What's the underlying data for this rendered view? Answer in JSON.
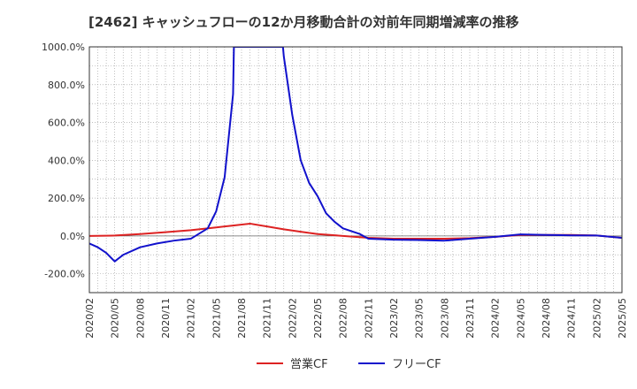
{
  "chart_data": {
    "type": "line",
    "title": "[2462]  キャッシュフローの12か月移動合計の対前年同期増減率の推移",
    "xlabel": "",
    "ylabel": "",
    "ylim": [
      -300,
      1000
    ],
    "yticks": [
      1000,
      800,
      600,
      400,
      200,
      0,
      -200
    ],
    "ytick_labels": [
      "1000.0%",
      "800.0%",
      "600.0%",
      "400.0%",
      "200.0%",
      "0.0%",
      "-200.0%"
    ],
    "x_start": "2020/02",
    "x_end": "2025/05",
    "xtick_labels": [
      "2020/02",
      "2020/05",
      "2020/08",
      "2020/11",
      "2021/02",
      "2021/05",
      "2021/08",
      "2021/11",
      "2022/02",
      "2022/05",
      "2022/08",
      "2022/11",
      "2023/02",
      "2023/05",
      "2023/08",
      "2023/11",
      "2024/02",
      "2024/05",
      "2024/08",
      "2024/11",
      "2025/02",
      "2025/05"
    ],
    "grid": true,
    "legend_position": "bottom",
    "series": [
      {
        "name": "営業CF",
        "color": "#dd2222",
        "points": [
          {
            "m": 0,
            "v": 0
          },
          {
            "m": 3,
            "v": 2
          },
          {
            "m": 6,
            "v": 10
          },
          {
            "m": 9,
            "v": 20
          },
          {
            "m": 12,
            "v": 30
          },
          {
            "m": 15,
            "v": 45
          },
          {
            "m": 17,
            "v": 55
          },
          {
            "m": 19,
            "v": 65
          },
          {
            "m": 21,
            "v": 50
          },
          {
            "m": 23,
            "v": 35
          },
          {
            "m": 25,
            "v": 22
          },
          {
            "m": 27,
            "v": 10
          },
          {
            "m": 30,
            "v": 0
          },
          {
            "m": 33,
            "v": -10
          },
          {
            "m": 36,
            "v": -15
          },
          {
            "m": 39,
            "v": -15
          },
          {
            "m": 42,
            "v": -15
          },
          {
            "m": 45,
            "v": -12
          },
          {
            "m": 48,
            "v": -5
          },
          {
            "m": 51,
            "v": 5
          },
          {
            "m": 54,
            "v": 5
          },
          {
            "m": 57,
            "v": 5
          },
          {
            "m": 60,
            "v": 2
          },
          {
            "m": 63,
            "v": -10
          },
          {
            "m": 66,
            "v": -20
          }
        ]
      },
      {
        "name": "フリーCF",
        "color": "#1111cc",
        "points": [
          {
            "m": 0,
            "v": -40
          },
          {
            "m": 1,
            "v": -60
          },
          {
            "m": 2,
            "v": -90
          },
          {
            "m": 3,
            "v": -135
          },
          {
            "m": 4,
            "v": -100
          },
          {
            "m": 6,
            "v": -60
          },
          {
            "m": 8,
            "v": -40
          },
          {
            "m": 10,
            "v": -25
          },
          {
            "m": 12,
            "v": -15
          },
          {
            "m": 14,
            "v": 40
          },
          {
            "m": 15,
            "v": 130
          },
          {
            "m": 16,
            "v": 310
          },
          {
            "m": 17,
            "v": 750
          },
          {
            "m": 17.1,
            "v": 1000
          },
          {
            "m": 22.9,
            "v": 1000
          },
          {
            "m": 23,
            "v": 950
          },
          {
            "m": 24,
            "v": 640
          },
          {
            "m": 25,
            "v": 400
          },
          {
            "m": 26,
            "v": 280
          },
          {
            "m": 27,
            "v": 210
          },
          {
            "m": 28,
            "v": 120
          },
          {
            "m": 29,
            "v": 75
          },
          {
            "m": 30,
            "v": 40
          },
          {
            "m": 32,
            "v": 10
          },
          {
            "m": 33,
            "v": -15
          },
          {
            "m": 36,
            "v": -20
          },
          {
            "m": 39,
            "v": -22
          },
          {
            "m": 42,
            "v": -25
          },
          {
            "m": 45,
            "v": -15
          },
          {
            "m": 48,
            "v": -5
          },
          {
            "m": 51,
            "v": 8
          },
          {
            "m": 54,
            "v": 5
          },
          {
            "m": 57,
            "v": 3
          },
          {
            "m": 60,
            "v": 2
          },
          {
            "m": 63,
            "v": -10
          },
          {
            "m": 66,
            "v": -30
          }
        ]
      }
    ]
  }
}
